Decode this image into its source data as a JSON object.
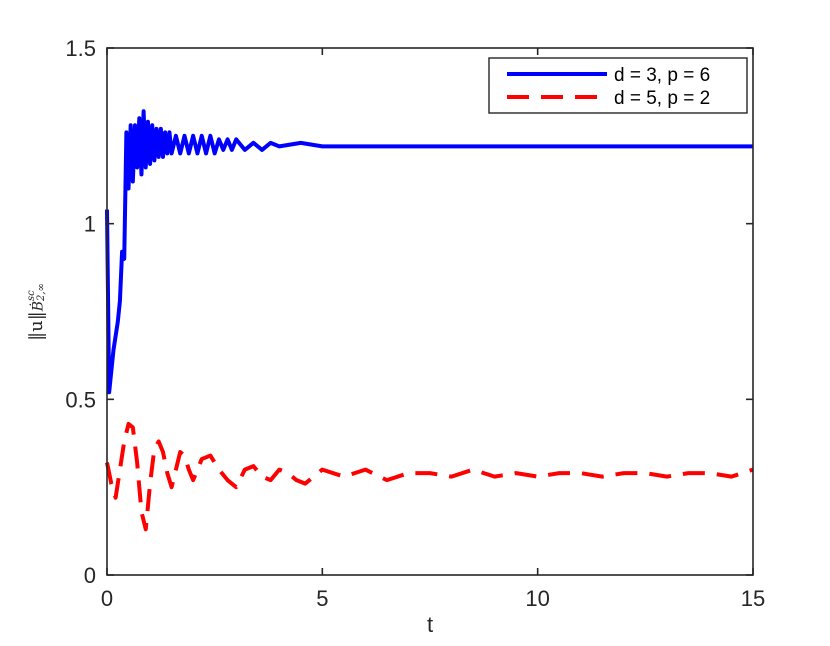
{
  "chart_data": {
    "type": "line",
    "title": "",
    "xlabel": "t",
    "ylabel": "‖u‖Ḃ^{sc}_{2,∞}",
    "ylabel_parts": {
      "main": "‖u‖",
      "base": "Ḃ",
      "sup": "sc",
      "sub": "2,∞"
    },
    "xlim": [
      0,
      15
    ],
    "ylim": [
      0,
      1.5
    ],
    "xticks": [
      0,
      5,
      10,
      15
    ],
    "xtick_labels": [
      "0",
      "5",
      "10",
      "15"
    ],
    "yticks": [
      0,
      0.5,
      1,
      1.5
    ],
    "ytick_labels": [
      "0",
      "0.5",
      "1",
      "1.5"
    ],
    "grid": false,
    "legend_position": "top-right",
    "series": [
      {
        "name": "d = 3, p = 6",
        "color": "#0000ff",
        "style": "solid",
        "x": [
          0.0,
          0.05,
          0.1,
          0.15,
          0.2,
          0.25,
          0.3,
          0.35,
          0.4,
          0.45,
          0.5,
          0.55,
          0.6,
          0.65,
          0.7,
          0.75,
          0.8,
          0.85,
          0.9,
          0.95,
          1.0,
          1.05,
          1.1,
          1.15,
          1.2,
          1.25,
          1.3,
          1.35,
          1.4,
          1.45,
          1.5,
          1.6,
          1.7,
          1.8,
          1.9,
          2.0,
          2.1,
          2.2,
          2.3,
          2.4,
          2.5,
          2.6,
          2.7,
          2.8,
          2.9,
          3.0,
          3.2,
          3.4,
          3.6,
          3.8,
          4.0,
          4.5,
          5.0,
          6.0,
          7.0,
          8.0,
          9.0,
          10.0,
          11.0,
          12.0,
          13.0,
          14.0,
          15.0
        ],
        "y": [
          1.04,
          0.52,
          0.58,
          0.64,
          0.68,
          0.72,
          0.78,
          0.92,
          0.9,
          1.26,
          1.1,
          1.28,
          1.12,
          1.28,
          1.16,
          1.3,
          1.14,
          1.32,
          1.16,
          1.29,
          1.17,
          1.28,
          1.18,
          1.27,
          1.19,
          1.27,
          1.19,
          1.26,
          1.2,
          1.26,
          1.2,
          1.25,
          1.2,
          1.25,
          1.2,
          1.25,
          1.2,
          1.25,
          1.2,
          1.25,
          1.2,
          1.24,
          1.21,
          1.24,
          1.21,
          1.24,
          1.21,
          1.23,
          1.21,
          1.23,
          1.22,
          1.23,
          1.22,
          1.22,
          1.22,
          1.22,
          1.22,
          1.22,
          1.22,
          1.22,
          1.22,
          1.22,
          1.22
        ]
      },
      {
        "name": "d = 5, p = 2",
        "color": "#ff0000",
        "style": "dashed",
        "x": [
          0.0,
          0.1,
          0.2,
          0.3,
          0.4,
          0.5,
          0.6,
          0.7,
          0.8,
          0.9,
          1.0,
          1.1,
          1.2,
          1.3,
          1.4,
          1.5,
          1.6,
          1.7,
          1.8,
          1.9,
          2.0,
          2.2,
          2.4,
          2.6,
          2.8,
          3.0,
          3.2,
          3.4,
          3.6,
          3.8,
          4.0,
          4.2,
          4.4,
          4.6,
          4.8,
          5.0,
          5.5,
          6.0,
          6.5,
          7.0,
          7.5,
          8.0,
          8.5,
          9.0,
          9.5,
          10.0,
          10.5,
          11.0,
          11.5,
          12.0,
          12.5,
          13.0,
          13.5,
          14.0,
          14.5,
          15.0
        ],
        "y": [
          0.32,
          0.26,
          0.22,
          0.3,
          0.38,
          0.43,
          0.42,
          0.32,
          0.18,
          0.13,
          0.26,
          0.36,
          0.38,
          0.35,
          0.29,
          0.25,
          0.3,
          0.35,
          0.34,
          0.3,
          0.27,
          0.33,
          0.34,
          0.3,
          0.27,
          0.25,
          0.3,
          0.31,
          0.28,
          0.27,
          0.3,
          0.29,
          0.27,
          0.26,
          0.28,
          0.3,
          0.28,
          0.3,
          0.27,
          0.29,
          0.29,
          0.28,
          0.3,
          0.28,
          0.29,
          0.28,
          0.29,
          0.29,
          0.28,
          0.29,
          0.29,
          0.28,
          0.29,
          0.29,
          0.28,
          0.3
        ]
      }
    ]
  }
}
